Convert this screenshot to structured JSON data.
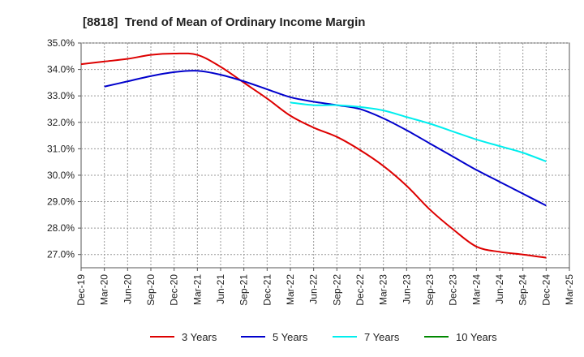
{
  "chart_data": {
    "type": "line",
    "title": "[8818]  Trend of Mean of Ordinary Income Margin",
    "xlabel": "",
    "ylabel": "",
    "ylim": [
      26.5,
      35.0
    ],
    "yticks": [
      "27.0%",
      "28.0%",
      "29.0%",
      "30.0%",
      "31.0%",
      "32.0%",
      "33.0%",
      "34.0%",
      "35.0%"
    ],
    "ytick_values": [
      27,
      28,
      29,
      30,
      31,
      32,
      33,
      34,
      35
    ],
    "categories": [
      "Dec-19",
      "Mar-20",
      "Jun-20",
      "Sep-20",
      "Dec-20",
      "Mar-21",
      "Jun-21",
      "Sep-21",
      "Dec-21",
      "Mar-22",
      "Jun-22",
      "Sep-22",
      "Dec-22",
      "Mar-23",
      "Jun-23",
      "Sep-23",
      "Dec-23",
      "Mar-24",
      "Jun-24",
      "Sep-24",
      "Dec-24",
      "Mar-25"
    ],
    "grid": true,
    "legend_position": "bottom",
    "series": [
      {
        "name": "3 Years",
        "color": "#dd0000",
        "values": [
          34.2,
          34.3,
          34.4,
          34.55,
          34.6,
          34.55,
          34.1,
          33.5,
          32.9,
          32.25,
          31.8,
          31.45,
          30.95,
          30.35,
          29.6,
          28.7,
          27.95,
          27.3,
          27.1,
          27.0,
          26.88,
          null
        ]
      },
      {
        "name": "5 Years",
        "color": "#0000cc",
        "values": [
          null,
          33.35,
          33.55,
          33.75,
          33.9,
          33.95,
          33.8,
          33.55,
          33.25,
          32.95,
          32.78,
          32.65,
          32.5,
          32.15,
          31.7,
          31.2,
          30.7,
          30.2,
          29.75,
          29.3,
          28.85,
          null
        ]
      },
      {
        "name": "7 Years",
        "color": "#00eeee",
        "values": [
          null,
          null,
          null,
          null,
          null,
          null,
          null,
          null,
          null,
          32.75,
          32.65,
          32.65,
          32.58,
          32.45,
          32.2,
          31.95,
          31.65,
          31.35,
          31.1,
          30.85,
          30.52,
          null
        ]
      },
      {
        "name": "10 Years",
        "color": "#008800",
        "values": [
          null,
          null,
          null,
          null,
          null,
          null,
          null,
          null,
          null,
          null,
          null,
          null,
          null,
          null,
          null,
          null,
          null,
          null,
          null,
          null,
          null,
          null
        ]
      }
    ]
  }
}
